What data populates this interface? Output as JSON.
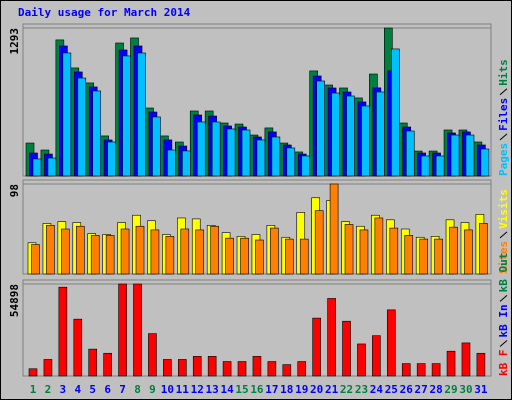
{
  "chart_data": [
    {
      "type": "bar",
      "title": "Daily usage for March 2014",
      "series": [
        {
          "name": "Hits",
          "color": "#008040",
          "values": [
            288,
            227,
            1189,
            944,
            813,
            350,
            1162,
            1206,
            594,
            350,
            297,
            568,
            568,
            463,
            454,
            358,
            420,
            288,
            210,
            918,
            795,
            769,
            682,
            891,
            1293,
            463,
            218,
            218,
            402,
            402,
            297
          ]
        },
        {
          "name": "Files",
          "color": "#0000ff",
          "values": [
            201,
            192,
            1136,
            909,
            778,
            315,
            1101,
            1136,
            559,
            315,
            262,
            533,
            524,
            437,
            428,
            341,
            385,
            271,
            192,
            874,
            769,
            734,
            647,
            770,
            919,
            428,
            201,
            201,
            376,
            385,
            271
          ]
        },
        {
          "name": "Pages",
          "color": "#00c0ff",
          "values": [
            149,
            157,
            1075,
            856,
            743,
            297,
            1049,
            1075,
            516,
            227,
            219,
            472,
            472,
            411,
            402,
            315,
            341,
            245,
            175,
            830,
            725,
            699,
            612,
            734,
            1110,
            393,
            175,
            175,
            358,
            358,
            236
          ]
        }
      ],
      "ylim": [
        0,
        1293
      ],
      "yticks": [
        1293
      ]
    },
    {
      "type": "bar",
      "series": [
        {
          "name": "Visits",
          "color": "#ffff00",
          "values": [
            34,
            55,
            57,
            56,
            44,
            43,
            56,
            64,
            58,
            43,
            61,
            60,
            53,
            45,
            41,
            43,
            53,
            40,
            67,
            83,
            80,
            57,
            52,
            64,
            59,
            49,
            40,
            41,
            59,
            56,
            65
          ]
        },
        {
          "name": "Sites",
          "color": "#ff8000",
          "values": [
            32,
            53,
            49,
            52,
            42,
            42,
            49,
            52,
            48,
            41,
            49,
            48,
            52,
            39,
            39,
            37,
            50,
            38,
            38,
            69,
            98,
            54,
            48,
            61,
            50,
            42,
            38,
            38,
            51,
            48,
            55
          ]
        }
      ],
      "ylim": [
        0,
        98
      ],
      "yticks": [
        98
      ]
    },
    {
      "type": "bar",
      "categories": [
        "1",
        "2",
        "3",
        "4",
        "5",
        "6",
        "7",
        "8",
        "9",
        "10",
        "11",
        "12",
        "13",
        "14",
        "15",
        "16",
        "17",
        "18",
        "19",
        "20",
        "21",
        "22",
        "23",
        "24",
        "25",
        "26",
        "27",
        "28",
        "29",
        "30",
        "31"
      ],
      "category_colors": [
        "#008040",
        "#008040",
        "#0000ff",
        "#0000ff",
        "#0000ff",
        "#0000ff",
        "#0000ff",
        "#008040",
        "#008040",
        "#0000ff",
        "#0000ff",
        "#0000ff",
        "#0000ff",
        "#0000ff",
        "#008040",
        "#008040",
        "#0000ff",
        "#0000ff",
        "#0000ff",
        "#0000ff",
        "#0000ff",
        "#008040",
        "#008040",
        "#0000ff",
        "#0000ff",
        "#0000ff",
        "#0000ff",
        "#0000ff",
        "#008040",
        "#008040",
        "#0000ff"
      ],
      "series": [
        {
          "name": "kB F",
          "color": "#ff0000",
          "values": [
            4318,
            9870,
            53000,
            33925,
            16037,
            13570,
            54898,
            54898,
            25290,
            9870,
            9870,
            11720,
            11720,
            8636,
            8636,
            11720,
            8636,
            6785,
            8636,
            34542,
            46262,
            32692,
            19121,
            24056,
            39477,
            7402,
            7402,
            7402,
            14803,
            19738,
            13570
          ]
        }
      ],
      "legend_extra": [
        {
          "name": "kB In",
          "color": "#0000ff"
        },
        {
          "name": "kB Out",
          "color": "#008040"
        }
      ],
      "ylim": [
        0,
        54898
      ],
      "yticks": [
        54898
      ]
    }
  ]
}
